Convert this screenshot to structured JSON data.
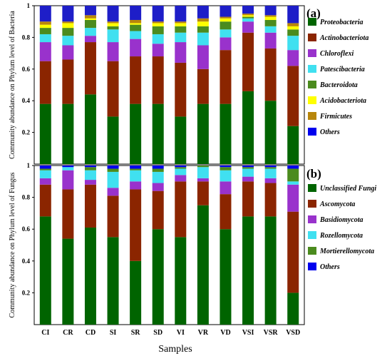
{
  "chart_data": [
    {
      "type": "bar",
      "stacked": true,
      "panel_label": "(a)",
      "ylabel": "Community abundance on Phylum level of Bacteria",
      "ylim": [
        0,
        1
      ],
      "yticks": [
        "0.2",
        "0.4",
        "0.6",
        "0.8",
        "1"
      ],
      "categories": [
        "CI",
        "CR",
        "CD",
        "SI",
        "SR",
        "SD",
        "VI",
        "VR",
        "VD",
        "VSI",
        "VSR",
        "VSD"
      ],
      "colors": {
        "Proteobacteria": "#006400",
        "Actinobacteriota": "#8b2500",
        "Chloroflexi": "#9932cc",
        "Patescibacteria": "#40e0f0",
        "Bacteroidota": "#4b8b1e",
        "Acidobacteriota": "#ffff00",
        "Firmicutes": "#b8860b",
        "Others": "#0000ee",
        "Others_top": "#1e1ec8"
      },
      "series": [
        {
          "name": "Proteobacteria",
          "values": [
            0.38,
            0.38,
            0.44,
            0.3,
            0.38,
            0.38,
            0.3,
            0.38,
            0.38,
            0.46,
            0.4,
            0.24
          ]
        },
        {
          "name": "Actinobacteriota",
          "values": [
            0.27,
            0.28,
            0.33,
            0.35,
            0.3,
            0.3,
            0.34,
            0.22,
            0.34,
            0.37,
            0.33,
            0.38
          ]
        },
        {
          "name": "Chloroflexi",
          "values": [
            0.12,
            0.09,
            0.04,
            0.12,
            0.11,
            0.08,
            0.13,
            0.15,
            0.08,
            0.07,
            0.1,
            0.1
          ]
        },
        {
          "name": "Patescibacteria",
          "values": [
            0.05,
            0.06,
            0.05,
            0.08,
            0.05,
            0.06,
            0.06,
            0.08,
            0.05,
            0.02,
            0.04,
            0.09
          ]
        },
        {
          "name": "Bacteroidota",
          "values": [
            0.04,
            0.05,
            0.05,
            0.02,
            0.04,
            0.05,
            0.04,
            0.04,
            0.05,
            0.01,
            0.04,
            0.04
          ]
        },
        {
          "name": "Acidobacteriota",
          "values": [
            0.02,
            0.03,
            0.01,
            0.02,
            0.01,
            0.02,
            0.02,
            0.03,
            0.02,
            0.01,
            0.02,
            0.02
          ]
        },
        {
          "name": "Firmicutes",
          "values": [
            0.02,
            0.01,
            0.02,
            0.01,
            0.02,
            0.01,
            0.01,
            0.02,
            0.01,
            0.01,
            0.01,
            0.02
          ]
        },
        {
          "name": "Others",
          "values": [
            0.1,
            0.1,
            0.06,
            0.1,
            0.09,
            0.1,
            0.1,
            0.08,
            0.07,
            0.05,
            0.06,
            0.11
          ]
        }
      ]
    },
    {
      "type": "bar",
      "stacked": true,
      "panel_label": "(b)",
      "ylabel": "Community abundance on Phylum level of Fungus",
      "ylim": [
        0,
        1
      ],
      "yticks": [
        "0.2",
        "0.4",
        "0.6",
        "0.8",
        "1"
      ],
      "categories": [
        "CI",
        "CR",
        "CD",
        "SI",
        "SR",
        "SD",
        "VI",
        "VR",
        "VD",
        "VSI",
        "VSR",
        "VSD"
      ],
      "colors": {
        "Unclassified Fungi": "#006400",
        "Ascomycota": "#8b2500",
        "Basidiomycota": "#9932cc",
        "Rozellomycota": "#40e0f0",
        "Mortierellomycota": "#4b8b1e",
        "Others": "#0000ee"
      },
      "series": [
        {
          "name": "Unclassified Fungi",
          "values": [
            0.68,
            0.54,
            0.61,
            0.55,
            0.4,
            0.6,
            0.55,
            0.75,
            0.6,
            0.68,
            0.68,
            0.2
          ]
        },
        {
          "name": "Ascomycota",
          "values": [
            0.2,
            0.31,
            0.27,
            0.26,
            0.45,
            0.24,
            0.35,
            0.15,
            0.22,
            0.22,
            0.21,
            0.51
          ]
        },
        {
          "name": "Basidiomycota",
          "values": [
            0.04,
            0.12,
            0.03,
            0.05,
            0.05,
            0.05,
            0.04,
            0.02,
            0.08,
            0.03,
            0.03,
            0.17
          ]
        },
        {
          "name": "Rozellomycota",
          "values": [
            0.05,
            0.02,
            0.06,
            0.1,
            0.07,
            0.07,
            0.04,
            0.07,
            0.07,
            0.05,
            0.06,
            0.02
          ]
        },
        {
          "name": "Mortierellomycota",
          "values": [
            0.01,
            0.0,
            0.02,
            0.02,
            0.01,
            0.02,
            0.01,
            0.01,
            0.02,
            0.01,
            0.01,
            0.08
          ]
        },
        {
          "name": "Others",
          "values": [
            0.02,
            0.01,
            0.01,
            0.02,
            0.02,
            0.02,
            0.01,
            0.0,
            0.01,
            0.01,
            0.01,
            0.02
          ]
        }
      ]
    }
  ],
  "xlabel": "Samples"
}
